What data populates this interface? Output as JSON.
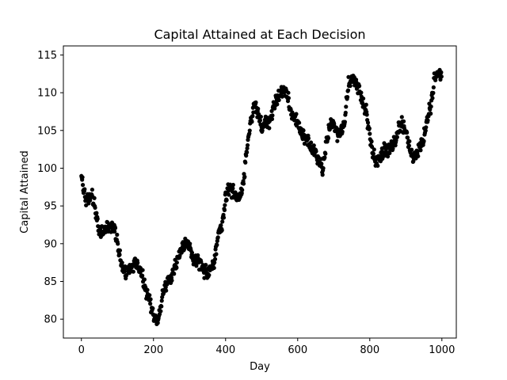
{
  "chart_data": {
    "type": "scatter",
    "title": "Capital Attained at Each Decision",
    "xlabel": "Day",
    "ylabel": "Capital Attained",
    "xlim": [
      -50,
      1040
    ],
    "ylim": [
      77.5,
      116.2
    ],
    "xticks": [
      0,
      200,
      400,
      600,
      800,
      1000
    ],
    "xtick_labels": [
      "0",
      "200",
      "400",
      "600",
      "800",
      "1000"
    ],
    "yticks": [
      80,
      85,
      90,
      95,
      100,
      105,
      110,
      115
    ],
    "ytick_labels": [
      "80",
      "85",
      "90",
      "95",
      "100",
      "105",
      "110",
      "115"
    ],
    "grid": false,
    "marker_color": "#000000",
    "anchors": [
      [
        0,
        98.8
      ],
      [
        10,
        96.0
      ],
      [
        20,
        95.8
      ],
      [
        30,
        96.5
      ],
      [
        40,
        94.0
      ],
      [
        50,
        91.5
      ],
      [
        60,
        91.8
      ],
      [
        70,
        92.2
      ],
      [
        80,
        92.2
      ],
      [
        90,
        92.2
      ],
      [
        100,
        90.0
      ],
      [
        110,
        87.5
      ],
      [
        120,
        86.0
      ],
      [
        130,
        86.5
      ],
      [
        140,
        87.0
      ],
      [
        150,
        87.5
      ],
      [
        160,
        87.0
      ],
      [
        170,
        85.5
      ],
      [
        180,
        83.5
      ],
      [
        190,
        82.5
      ],
      [
        200,
        80.5
      ],
      [
        210,
        79.5
      ],
      [
        220,
        81.5
      ],
      [
        230,
        84.0
      ],
      [
        240,
        85.0
      ],
      [
        250,
        85.5
      ],
      [
        260,
        87.0
      ],
      [
        270,
        88.5
      ],
      [
        280,
        89.5
      ],
      [
        290,
        90.0
      ],
      [
        300,
        89.5
      ],
      [
        310,
        88.0
      ],
      [
        320,
        87.5
      ],
      [
        330,
        87.5
      ],
      [
        340,
        86.5
      ],
      [
        350,
        86.0
      ],
      [
        360,
        87.0
      ],
      [
        370,
        88.0
      ],
      [
        380,
        91.5
      ],
      [
        390,
        92.5
      ],
      [
        400,
        96.0
      ],
      [
        410,
        97.5
      ],
      [
        420,
        97.0
      ],
      [
        430,
        96.0
      ],
      [
        440,
        96.0
      ],
      [
        450,
        98.5
      ],
      [
        460,
        103.0
      ],
      [
        470,
        106.0
      ],
      [
        480,
        108.5
      ],
      [
        490,
        107.5
      ],
      [
        500,
        105.5
      ],
      [
        510,
        106.0
      ],
      [
        520,
        106.0
      ],
      [
        530,
        107.5
      ],
      [
        540,
        109.0
      ],
      [
        550,
        109.5
      ],
      [
        560,
        110.5
      ],
      [
        570,
        110.0
      ],
      [
        580,
        107.5
      ],
      [
        590,
        106.5
      ],
      [
        600,
        106.0
      ],
      [
        610,
        104.5
      ],
      [
        620,
        104.0
      ],
      [
        630,
        103.5
      ],
      [
        640,
        102.5
      ],
      [
        650,
        102.0
      ],
      [
        660,
        100.5
      ],
      [
        670,
        100.0
      ],
      [
        680,
        103.5
      ],
      [
        690,
        105.5
      ],
      [
        700,
        106.0
      ],
      [
        710,
        104.5
      ],
      [
        720,
        105.0
      ],
      [
        730,
        106.0
      ],
      [
        740,
        111.0
      ],
      [
        750,
        112.0
      ],
      [
        760,
        111.5
      ],
      [
        770,
        110.5
      ],
      [
        780,
        109.0
      ],
      [
        790,
        107.5
      ],
      [
        800,
        104.5
      ],
      [
        810,
        101.5
      ],
      [
        820,
        101.0
      ],
      [
        830,
        101.5
      ],
      [
        840,
        102.5
      ],
      [
        850,
        102.0
      ],
      [
        860,
        103.0
      ],
      [
        870,
        103.5
      ],
      [
        880,
        105.5
      ],
      [
        890,
        106.0
      ],
      [
        900,
        104.5
      ],
      [
        910,
        103.0
      ],
      [
        920,
        101.0
      ],
      [
        930,
        102.0
      ],
      [
        940,
        103.0
      ],
      [
        950,
        104.0
      ],
      [
        960,
        106.5
      ],
      [
        970,
        108.5
      ],
      [
        980,
        112.0
      ],
      [
        990,
        112.5
      ],
      [
        1000,
        112.5
      ]
    ],
    "spread": 0.55,
    "point_count": 1000
  }
}
